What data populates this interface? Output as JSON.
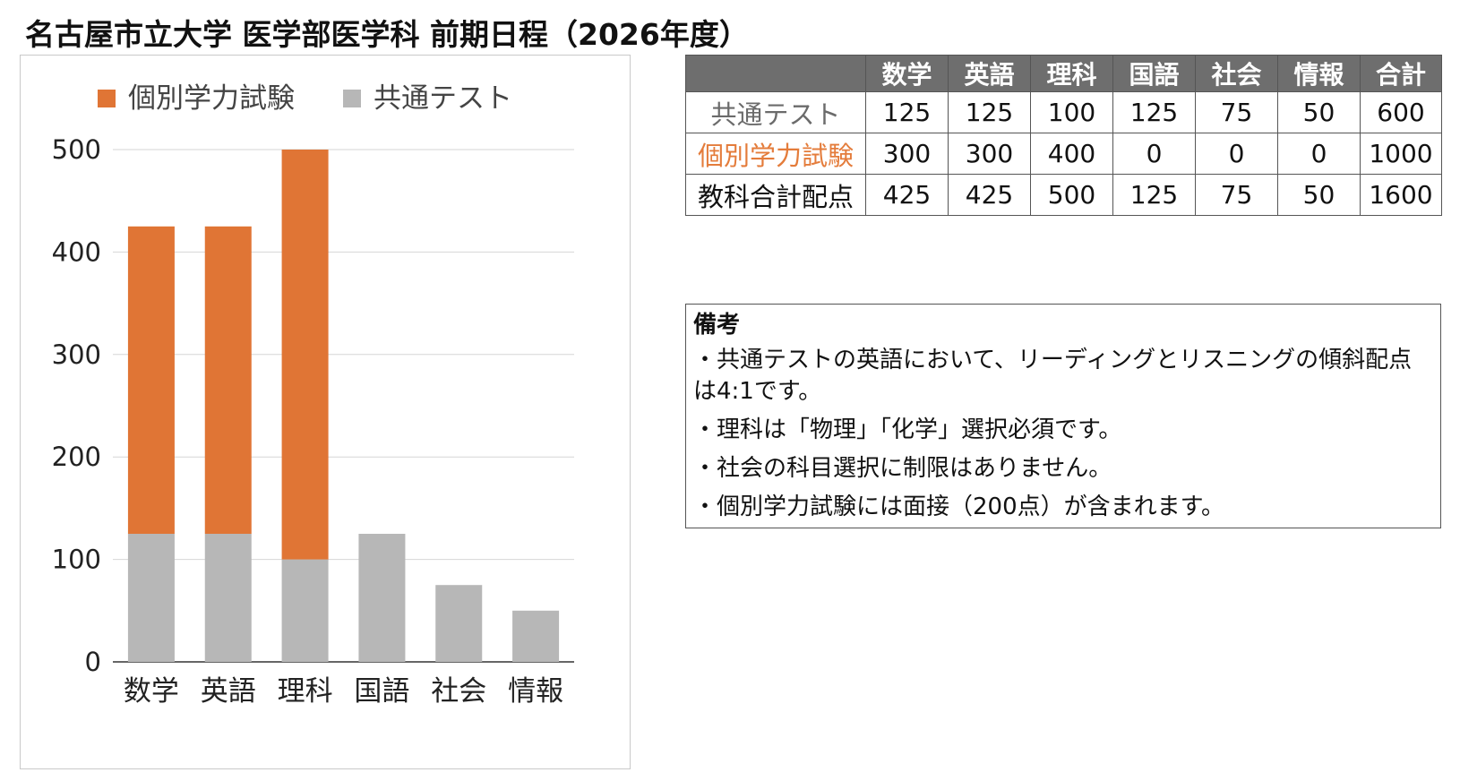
{
  "title": "名古屋市立大学 医学部医学科 前期日程（2026年度）",
  "colors": {
    "individual": "#e07535",
    "common": "#b7b7b7",
    "table_header": "#6e6e6e",
    "individual_text": "#e47c3b",
    "common_text": "#6b6b6b"
  },
  "chart_data": {
    "type": "bar",
    "stacked": true,
    "categories": [
      "数学",
      "英語",
      "理科",
      "国語",
      "社会",
      "情報"
    ],
    "series": [
      {
        "name": "共通テスト",
        "values": [
          125,
          125,
          100,
          125,
          75,
          50
        ]
      },
      {
        "name": "個別学力試験",
        "values": [
          300,
          300,
          400,
          0,
          0,
          0
        ]
      }
    ],
    "legend_order": [
      "個別学力試験",
      "共通テスト"
    ],
    "legend_position": "top",
    "ylim": [
      0,
      500
    ],
    "yticks": [
      "0",
      "100",
      "200",
      "300",
      "400",
      "500"
    ],
    "grid": true
  },
  "table": {
    "columns": [
      "数学",
      "英語",
      "理科",
      "国語",
      "社会",
      "情報",
      "合計"
    ],
    "rows": [
      {
        "label": "共通テスト",
        "values": [
          "125",
          "125",
          "100",
          "125",
          "75",
          "50",
          "600"
        ]
      },
      {
        "label": "個別学力試験",
        "values": [
          "300",
          "300",
          "400",
          "0",
          "0",
          "0",
          "1000"
        ]
      },
      {
        "label": "教科合計配点",
        "values": [
          "425",
          "425",
          "500",
          "125",
          "75",
          "50",
          "1600"
        ]
      }
    ]
  },
  "notes": {
    "title": "備考",
    "items": [
      "・共通テストの英語において、リーディングとリスニングの傾斜配点は4:1です。",
      "・理科は「物理」「化学」選択必須です。",
      "・社会の科目選択に制限はありません。",
      "・個別学力試験には面接（200点）が含まれます。"
    ]
  }
}
